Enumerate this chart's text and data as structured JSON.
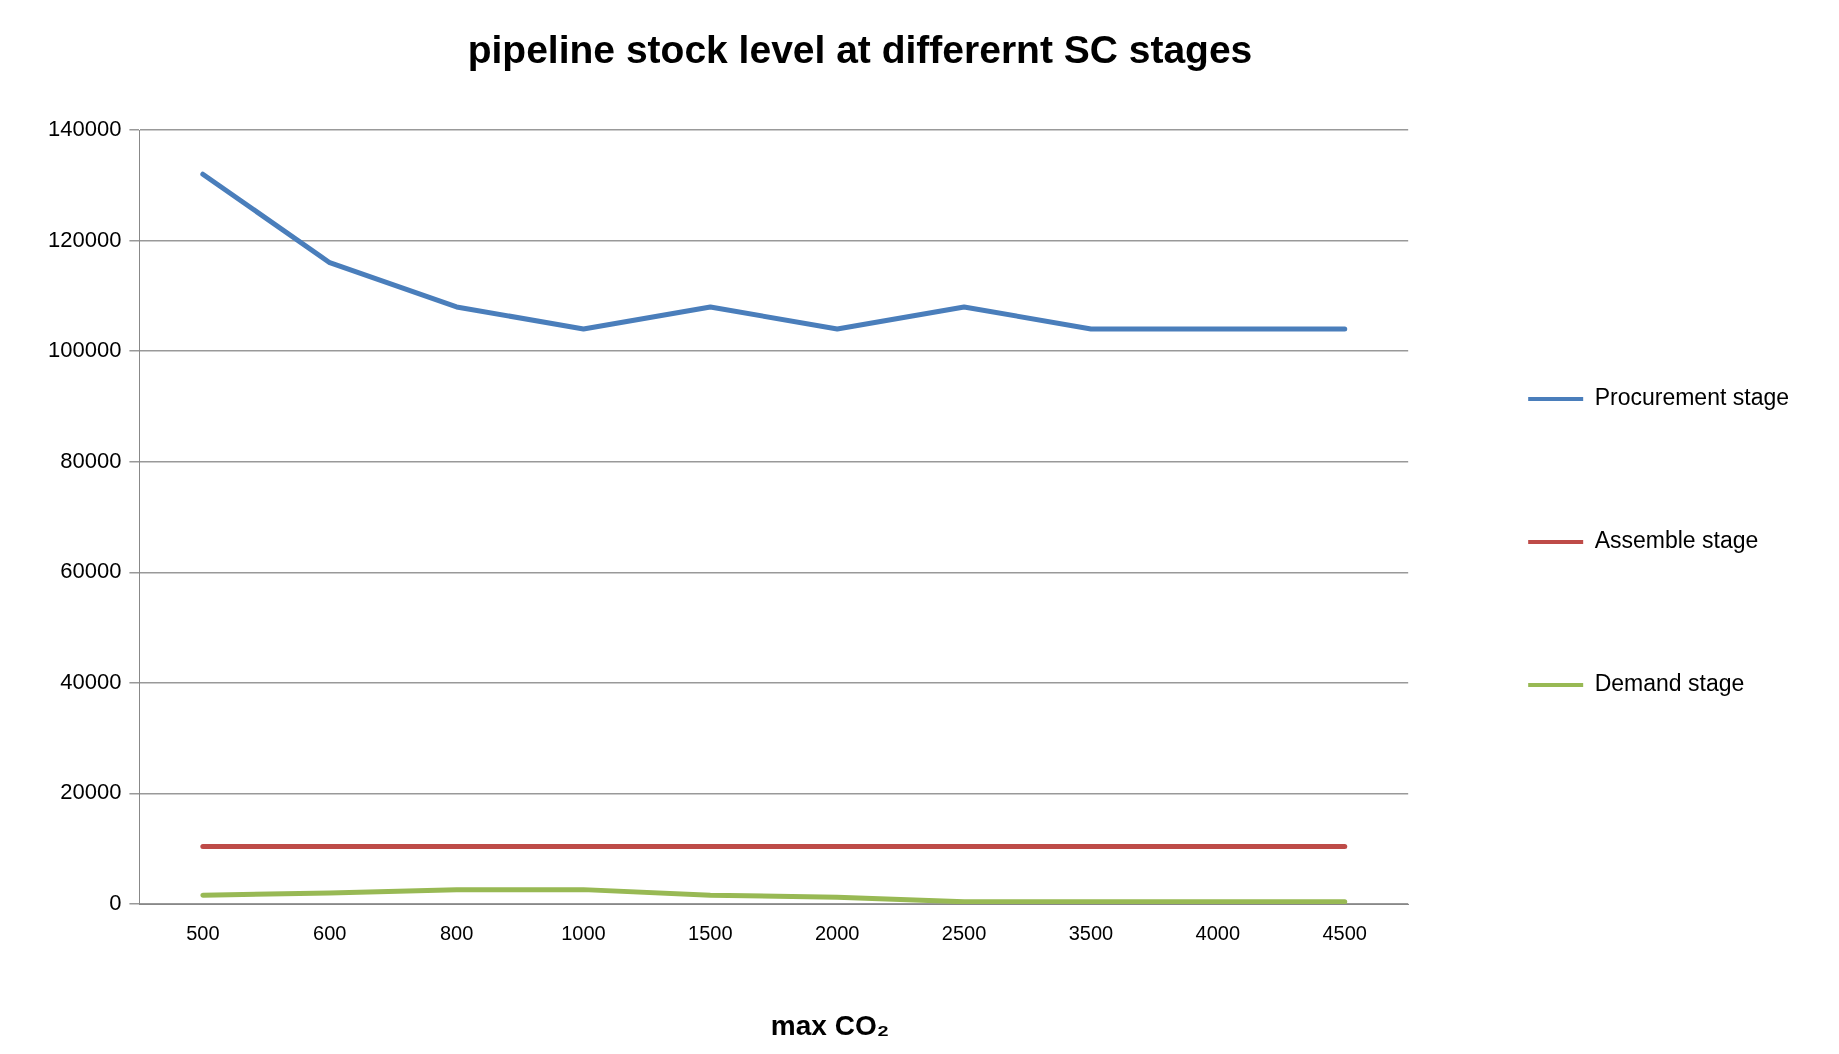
{
  "chart_data": {
    "type": "line",
    "title": "pipeline stock level at differernt SC stages",
    "xlabel": "max CO₂",
    "categories": [
      "500",
      "600",
      "800",
      "1000",
      "1500",
      "2000",
      "2500",
      "3500",
      "4000",
      "4500"
    ],
    "series": [
      {
        "name": "Procurement stage",
        "color": "#4a7ebb",
        "values": [
          132000,
          116000,
          108000,
          104000,
          108000,
          104000,
          108000,
          104000,
          104000,
          104000
        ]
      },
      {
        "name": "Assemble stage",
        "color": "#be4b48",
        "values": [
          10400,
          10400,
          10400,
          10400,
          10400,
          10400,
          10400,
          10400,
          10400,
          10400
        ]
      },
      {
        "name": "Demand stage",
        "color": "#98b954",
        "values": [
          1600,
          2000,
          2600,
          2600,
          1600,
          1200,
          400,
          400,
          400,
          400
        ]
      }
    ],
    "ylim": [
      0,
      140000
    ],
    "yticks": [
      0,
      20000,
      40000,
      60000,
      80000,
      100000,
      120000,
      140000
    ],
    "grid": "y",
    "legend": "right",
    "marker": "none",
    "line_style": "solid"
  }
}
